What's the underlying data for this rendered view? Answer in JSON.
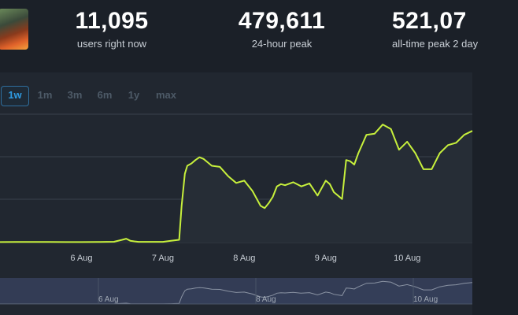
{
  "stats": [
    {
      "value": "11,095",
      "label": "users right now"
    },
    {
      "value": "479,611",
      "label": "24-hour peak"
    },
    {
      "value": "521,07",
      "label": "all-time peak 2 day"
    }
  ],
  "range_buttons": [
    {
      "label": "1w",
      "active": true
    },
    {
      "label": "1m",
      "active": false
    },
    {
      "label": "3m",
      "active": false
    },
    {
      "label": "6m",
      "active": false
    },
    {
      "label": "1y",
      "active": false
    },
    {
      "label": "max",
      "active": false
    }
  ],
  "colors": {
    "line": "#c7f03c",
    "accent": "#2f9ae0",
    "nav_fill": "#3a4566"
  },
  "chart_data": {
    "type": "line",
    "title": "",
    "xlabel": "",
    "ylabel": "",
    "x_ticks": [
      "6 Aug",
      "7 Aug",
      "8 Aug",
      "9 Aug",
      "10 Aug"
    ],
    "x_range": [
      5.0,
      10.8
    ],
    "ylim": [
      0,
      560000
    ],
    "grid": true,
    "series": [
      {
        "x": [
          5.0,
          5.2,
          5.4,
          5.6,
          5.8,
          6.0,
          6.2,
          6.4,
          6.5,
          6.55,
          6.6,
          6.65,
          6.7,
          6.8,
          7.0,
          7.1,
          7.2,
          7.23,
          7.27,
          7.3,
          7.35,
          7.4,
          7.45,
          7.5,
          7.55,
          7.6,
          7.7,
          7.8,
          7.9,
          8.0,
          8.1,
          8.2,
          8.25,
          8.3,
          8.35,
          8.4,
          8.45,
          8.5,
          8.6,
          8.7,
          8.8,
          8.9,
          9.0,
          9.05,
          9.1,
          9.2,
          9.25,
          9.3,
          9.35,
          9.4,
          9.5,
          9.6,
          9.7,
          9.8,
          9.9,
          10.0,
          10.1,
          10.2,
          10.3,
          10.4,
          10.5,
          10.6,
          10.7,
          10.8
        ],
        "values": [
          2000,
          2500,
          2500,
          2500,
          2000,
          2000,
          2500,
          3500,
          12000,
          17000,
          8000,
          5000,
          3000,
          3000,
          3000,
          8000,
          12000,
          160000,
          300000,
          335000,
          345000,
          360000,
          372000,
          365000,
          350000,
          335000,
          330000,
          290000,
          260000,
          270000,
          225000,
          160000,
          150000,
          172000,
          200000,
          245000,
          255000,
          250000,
          263000,
          245000,
          258000,
          205000,
          270000,
          255000,
          220000,
          190000,
          360000,
          355000,
          340000,
          390000,
          470000,
          475000,
          515000,
          495000,
          405000,
          440000,
          390000,
          320000,
          320000,
          390000,
          425000,
          435000,
          470000,
          487000
        ]
      }
    ],
    "navigator": {
      "x_ticks": [
        "6 Aug",
        "8 Aug",
        "10 Aug"
      ]
    }
  }
}
